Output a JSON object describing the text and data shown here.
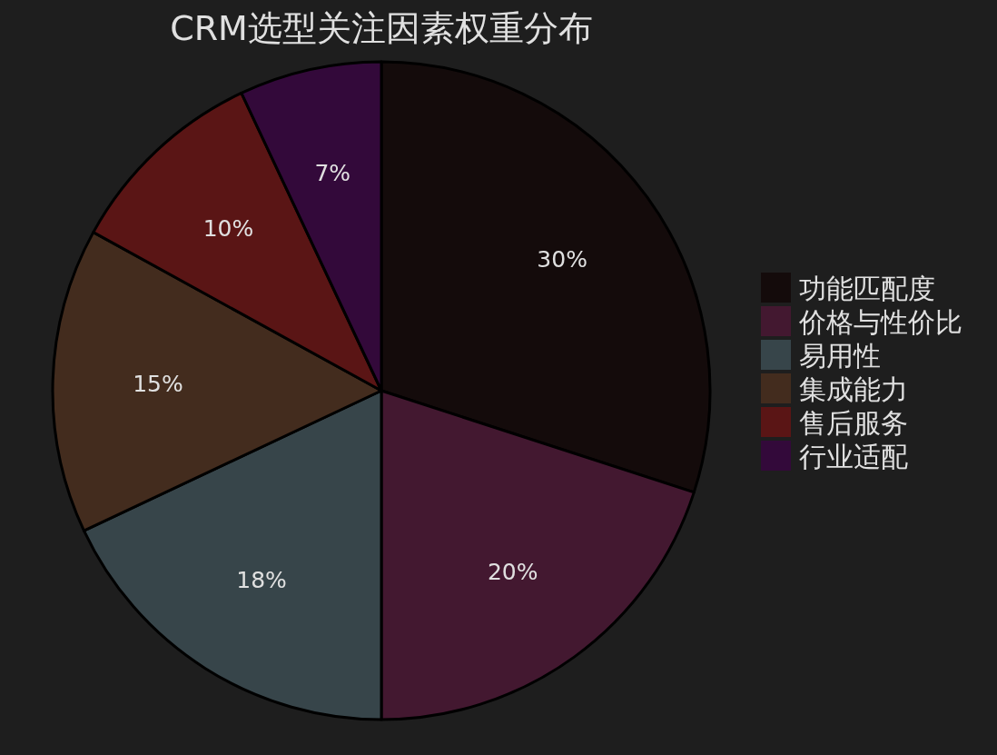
{
  "chart_data": {
    "type": "pie",
    "title": "CRM选型关注因素权重分布",
    "categories": [
      "功能匹配度",
      "价格与性价比",
      "易用性",
      "集成能力",
      "售后服务",
      "行业适配"
    ],
    "values": [
      30,
      20,
      18,
      15,
      10,
      7
    ],
    "colors": [
      "#140b0b",
      "#431830",
      "#37454a",
      "#432c1e",
      "#5a1515",
      "#33093a"
    ],
    "value_labels": [
      "30%",
      "20%",
      "18%",
      "15%",
      "10%",
      "7%"
    ],
    "legend": "right"
  }
}
